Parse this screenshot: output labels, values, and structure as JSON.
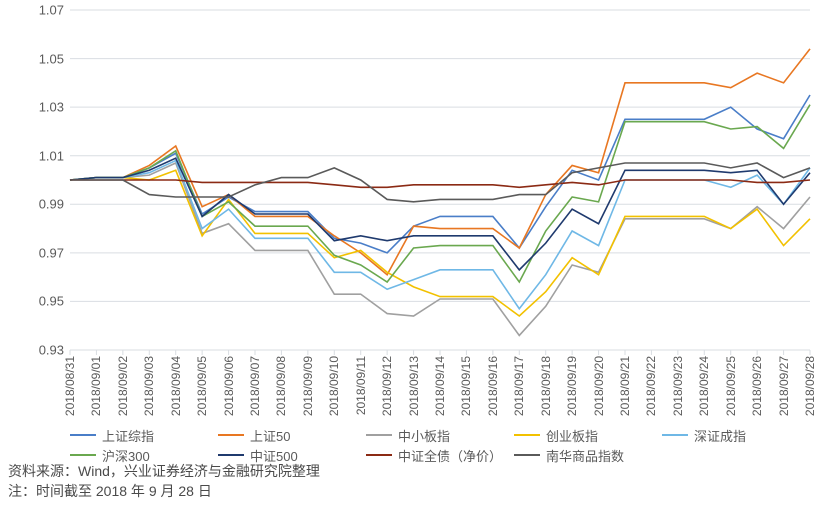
{
  "chart": {
    "type": "line",
    "background_color": "#ffffff",
    "grid_color": "#d9dde2",
    "axis_color": "#d9dde2",
    "text_color": "#5a5a5a",
    "label_fontsize": 12,
    "ytick_fontsize": 13,
    "legend_fontsize": 13,
    "footer_fontsize": 14,
    "line_width": 1.6,
    "ylim": [
      0.93,
      1.07
    ],
    "ytick_step": 0.02,
    "yticks": [
      "0.93",
      "0.95",
      "0.97",
      "0.99",
      "1.01",
      "1.03",
      "1.05",
      "1.07"
    ],
    "x_labels": [
      "2018/08/31",
      "2018/09/01",
      "2018/09/02",
      "2018/09/03",
      "2018/09/04",
      "2018/09/05",
      "2018/09/06",
      "2018/09/07",
      "2018/09/08",
      "2018/09/09",
      "2018/09/10",
      "2018/09/11",
      "2018/09/12",
      "2018/09/13",
      "2018/09/14",
      "2018/09/15",
      "2018/09/16",
      "2018/09/17",
      "2018/09/18",
      "2018/09/19",
      "2018/09/20",
      "2018/09/21",
      "2018/09/22",
      "2018/09/23",
      "2018/09/24",
      "2018/09/25",
      "2018/09/26",
      "2018/09/27",
      "2018/09/28"
    ],
    "x_label_rotation": -90,
    "series": [
      {
        "name": "上证综指",
        "color": "#4a7ec8",
        "values": [
          1.0,
          1.001,
          1.001,
          1.005,
          1.011,
          0.986,
          0.993,
          0.987,
          0.987,
          0.987,
          0.976,
          0.974,
          0.97,
          0.981,
          0.985,
          0.985,
          0.985,
          0.972,
          0.989,
          1.004,
          1.0,
          1.025,
          1.025,
          1.025,
          1.025,
          1.03,
          1.021,
          1.017,
          1.035
        ]
      },
      {
        "name": "上证50",
        "color": "#e87722",
        "values": [
          1.0,
          1.001,
          1.001,
          1.006,
          1.014,
          0.989,
          0.994,
          0.985,
          0.985,
          0.985,
          0.977,
          0.97,
          0.961,
          0.981,
          0.98,
          0.98,
          0.98,
          0.972,
          0.994,
          1.006,
          1.003,
          1.04,
          1.04,
          1.04,
          1.04,
          1.038,
          1.044,
          1.04,
          1.054
        ]
      },
      {
        "name": "中小板指",
        "color": "#a0a0a0",
        "values": [
          1.0,
          1.001,
          1.001,
          1.002,
          1.007,
          0.978,
          0.982,
          0.971,
          0.971,
          0.971,
          0.953,
          0.953,
          0.945,
          0.944,
          0.951,
          0.951,
          0.951,
          0.936,
          0.948,
          0.965,
          0.962,
          0.984,
          0.984,
          0.984,
          0.984,
          0.98,
          0.989,
          0.98,
          0.993
        ]
      },
      {
        "name": "创业板指",
        "color": "#f2c100",
        "values": [
          1.0,
          1.001,
          1.001,
          1.0,
          1.004,
          0.977,
          0.992,
          0.978,
          0.978,
          0.978,
          0.968,
          0.971,
          0.962,
          0.956,
          0.952,
          0.952,
          0.952,
          0.944,
          0.954,
          0.968,
          0.961,
          0.985,
          0.985,
          0.985,
          0.985,
          0.98,
          0.988,
          0.973,
          0.984
        ]
      },
      {
        "name": "深证成指",
        "color": "#6fb8e6",
        "values": [
          1.0,
          1.001,
          1.001,
          1.003,
          1.008,
          0.98,
          0.988,
          0.976,
          0.976,
          0.976,
          0.962,
          0.962,
          0.955,
          0.959,
          0.963,
          0.963,
          0.963,
          0.947,
          0.961,
          0.979,
          0.973,
          1.0,
          1.0,
          1.0,
          1.0,
          0.997,
          1.002,
          0.99,
          1.005
        ]
      },
      {
        "name": "沪深300",
        "color": "#6aa84f",
        "values": [
          1.0,
          1.001,
          1.001,
          1.005,
          1.012,
          0.985,
          0.991,
          0.981,
          0.981,
          0.981,
          0.969,
          0.965,
          0.958,
          0.972,
          0.973,
          0.973,
          0.973,
          0.958,
          0.979,
          0.993,
          0.991,
          1.024,
          1.024,
          1.024,
          1.024,
          1.021,
          1.022,
          1.013,
          1.031
        ]
      },
      {
        "name": "中证500",
        "color": "#1f3a6e",
        "values": [
          1.0,
          1.001,
          1.001,
          1.004,
          1.009,
          0.985,
          0.994,
          0.986,
          0.986,
          0.986,
          0.975,
          0.977,
          0.975,
          0.977,
          0.977,
          0.977,
          0.977,
          0.963,
          0.974,
          0.988,
          0.982,
          1.004,
          1.004,
          1.004,
          1.004,
          1.003,
          1.004,
          0.99,
          1.003
        ]
      },
      {
        "name": "中证全债（净价）",
        "color": "#8b2a14",
        "values": [
          1.0,
          1.0,
          1.0,
          1.0,
          1.0,
          0.999,
          0.999,
          0.999,
          0.999,
          0.999,
          0.998,
          0.997,
          0.997,
          0.998,
          0.998,
          0.998,
          0.998,
          0.997,
          0.998,
          0.999,
          0.998,
          1.0,
          1.0,
          1.0,
          1.0,
          1.0,
          0.999,
          0.999,
          1.0
        ]
      },
      {
        "name": "南华商品指数",
        "color": "#5a5a5a",
        "values": [
          1.0,
          1.0,
          1.0,
          0.994,
          0.993,
          0.993,
          0.993,
          0.998,
          1.001,
          1.001,
          1.005,
          1.0,
          0.992,
          0.991,
          0.992,
          0.992,
          0.992,
          0.994,
          0.994,
          1.003,
          1.005,
          1.007,
          1.007,
          1.007,
          1.007,
          1.005,
          1.007,
          1.001,
          1.005
        ]
      }
    ]
  },
  "footer": {
    "line1": "资料来源：Wind，兴业证券经济与金融研究院整理",
    "line2": "注：时间截至 2018 年 9 月 28 日"
  }
}
